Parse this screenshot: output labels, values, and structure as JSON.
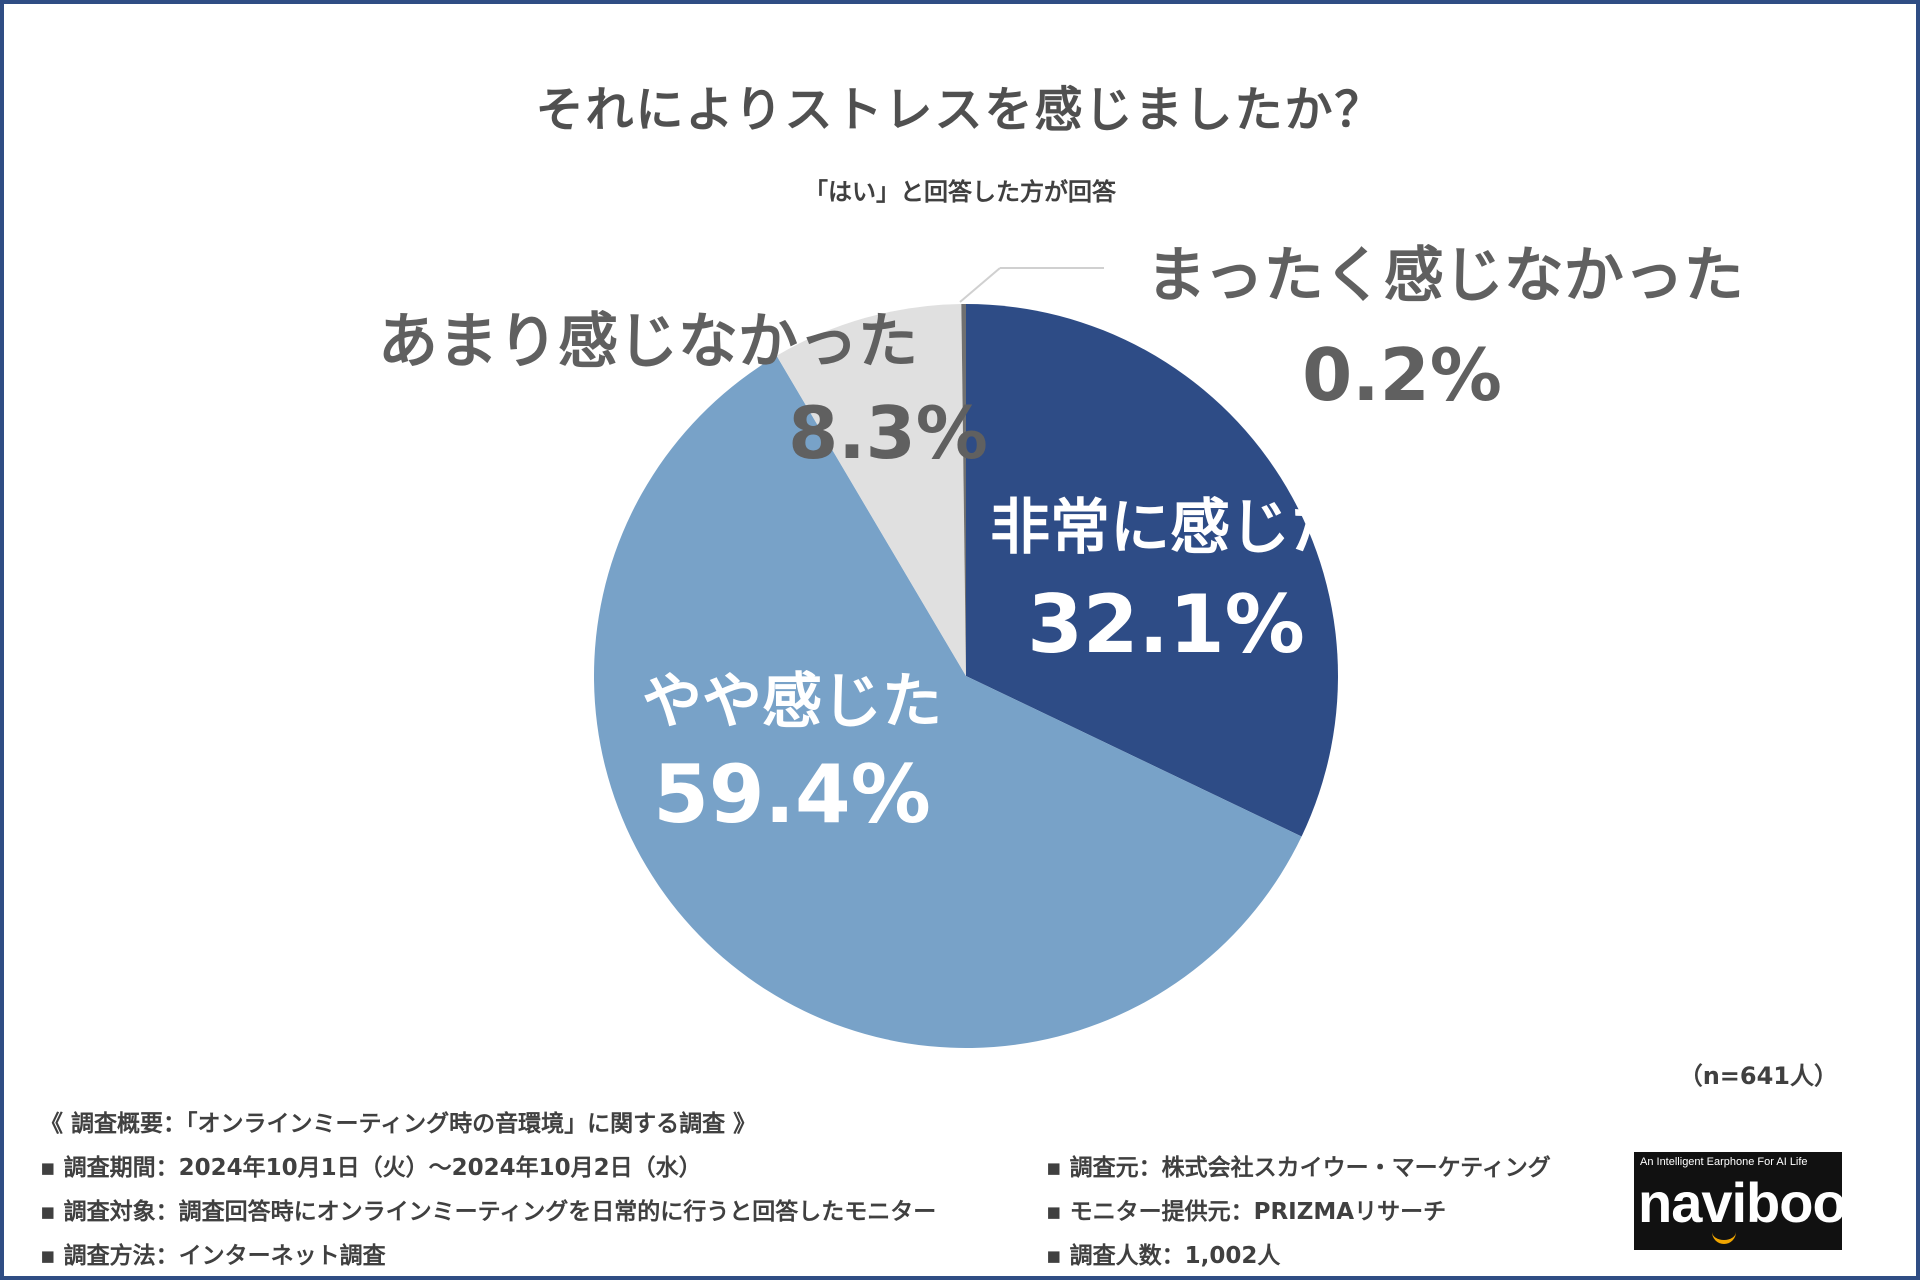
{
  "title": "それによりストレスを感じましたか？",
  "subtitle": "「はい」と回答した方が回答",
  "n_label": "（n=641人）",
  "colors": {
    "frame": "#2f4d84",
    "very": "#2e4c86",
    "somewhat": "#78a2c8",
    "notmuch": "#e0e0e0",
    "notatall": "#707070"
  },
  "chart_data": {
    "type": "pie",
    "title": "それによりストレスを感じましたか？",
    "subtitle": "「はい」と回答した方が回答",
    "slices": [
      {
        "label": "非常に感じた",
        "value": 32.1,
        "value_label": "32.1%"
      },
      {
        "label": "やや感じた",
        "value": 59.4,
        "value_label": "59.4%"
      },
      {
        "label": "あまり感じなかった",
        "value": 8.3,
        "value_label": "8.3%"
      },
      {
        "label": "まったく感じなかった",
        "value": 0.2,
        "value_label": "0.2%"
      }
    ]
  },
  "summary": {
    "heading": "《 調査概要：「オンラインミーティング時の音環境」に関する調査 》",
    "period": "▪ 調査期間：2024年10月1日（火）～2024年10月2日（水）",
    "target": "▪ 調査対象：調査回答時にオンラインミーティングを日常的に行うと回答したモニター",
    "method": "▪ 調査方法：インターネット調査",
    "source": "▪ 調査元：株式会社スカイウー・マーケティング",
    "provider": "▪ モニター提供元：PRIZMAリサーチ",
    "count": "▪ 調査人数：1,002人"
  },
  "logo": {
    "tagline": "An Intelligent Earphone For AI Life",
    "name": "navibook"
  }
}
